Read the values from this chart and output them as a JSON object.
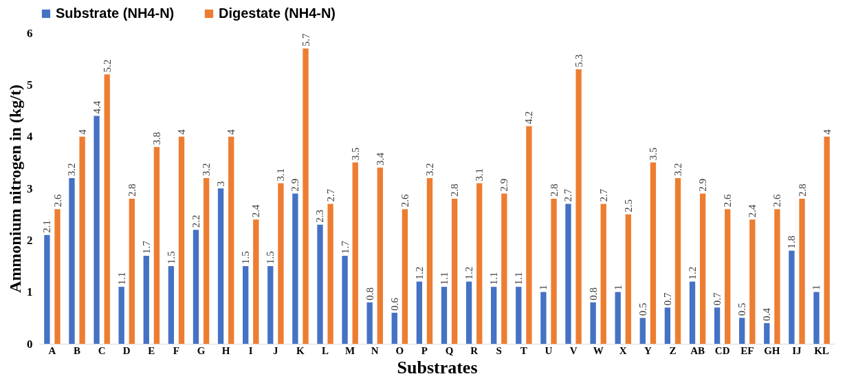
{
  "chart_data": {
    "type": "bar",
    "xlabel": "Substrates",
    "ylabel": "Ammonium nitrogen in (kg/t)",
    "categories": [
      "A",
      "B",
      "C",
      "D",
      "E",
      "F",
      "G",
      "H",
      "I",
      "J",
      "K",
      "L",
      "M",
      "N",
      "O",
      "P",
      "Q",
      "R",
      "S",
      "T",
      "U",
      "V",
      "W",
      "X",
      "Y",
      "Z",
      "AB",
      "CD",
      "EF",
      "GH",
      "IJ",
      "KL"
    ],
    "series": [
      {
        "name": "Substrate (NH4-N)",
        "color": "#4472c4",
        "values": [
          2.1,
          3.2,
          4.4,
          1.1,
          1.7,
          1.5,
          2.2,
          3,
          1.5,
          1.5,
          2.9,
          2.3,
          1.7,
          0.8,
          0.6,
          1.2,
          1.1,
          1.2,
          1.1,
          1.1,
          1,
          2.7,
          0.8,
          1,
          0.5,
          0.7,
          1.2,
          0.7,
          0.5,
          0.4,
          1.8,
          1
        ]
      },
      {
        "name": "Digestate (NH4-N)",
        "color": "#ed7d31",
        "values": [
          2.6,
          4,
          5.2,
          2.8,
          3.8,
          4,
          3.2,
          4,
          2.4,
          3.1,
          5.7,
          2.7,
          3.5,
          3.4,
          2.6,
          3.2,
          2.8,
          3.1,
          2.9,
          4.2,
          2.8,
          5.3,
          2.7,
          2.5,
          3.5,
          3.2,
          2.9,
          2.6,
          2.4,
          2.6,
          2.8,
          4
        ]
      }
    ],
    "ylim": [
      0,
      6
    ],
    "yticks": [
      0,
      1,
      2,
      3,
      4,
      5,
      6
    ],
    "grid": false,
    "legend": "top",
    "data_labels": true
  }
}
